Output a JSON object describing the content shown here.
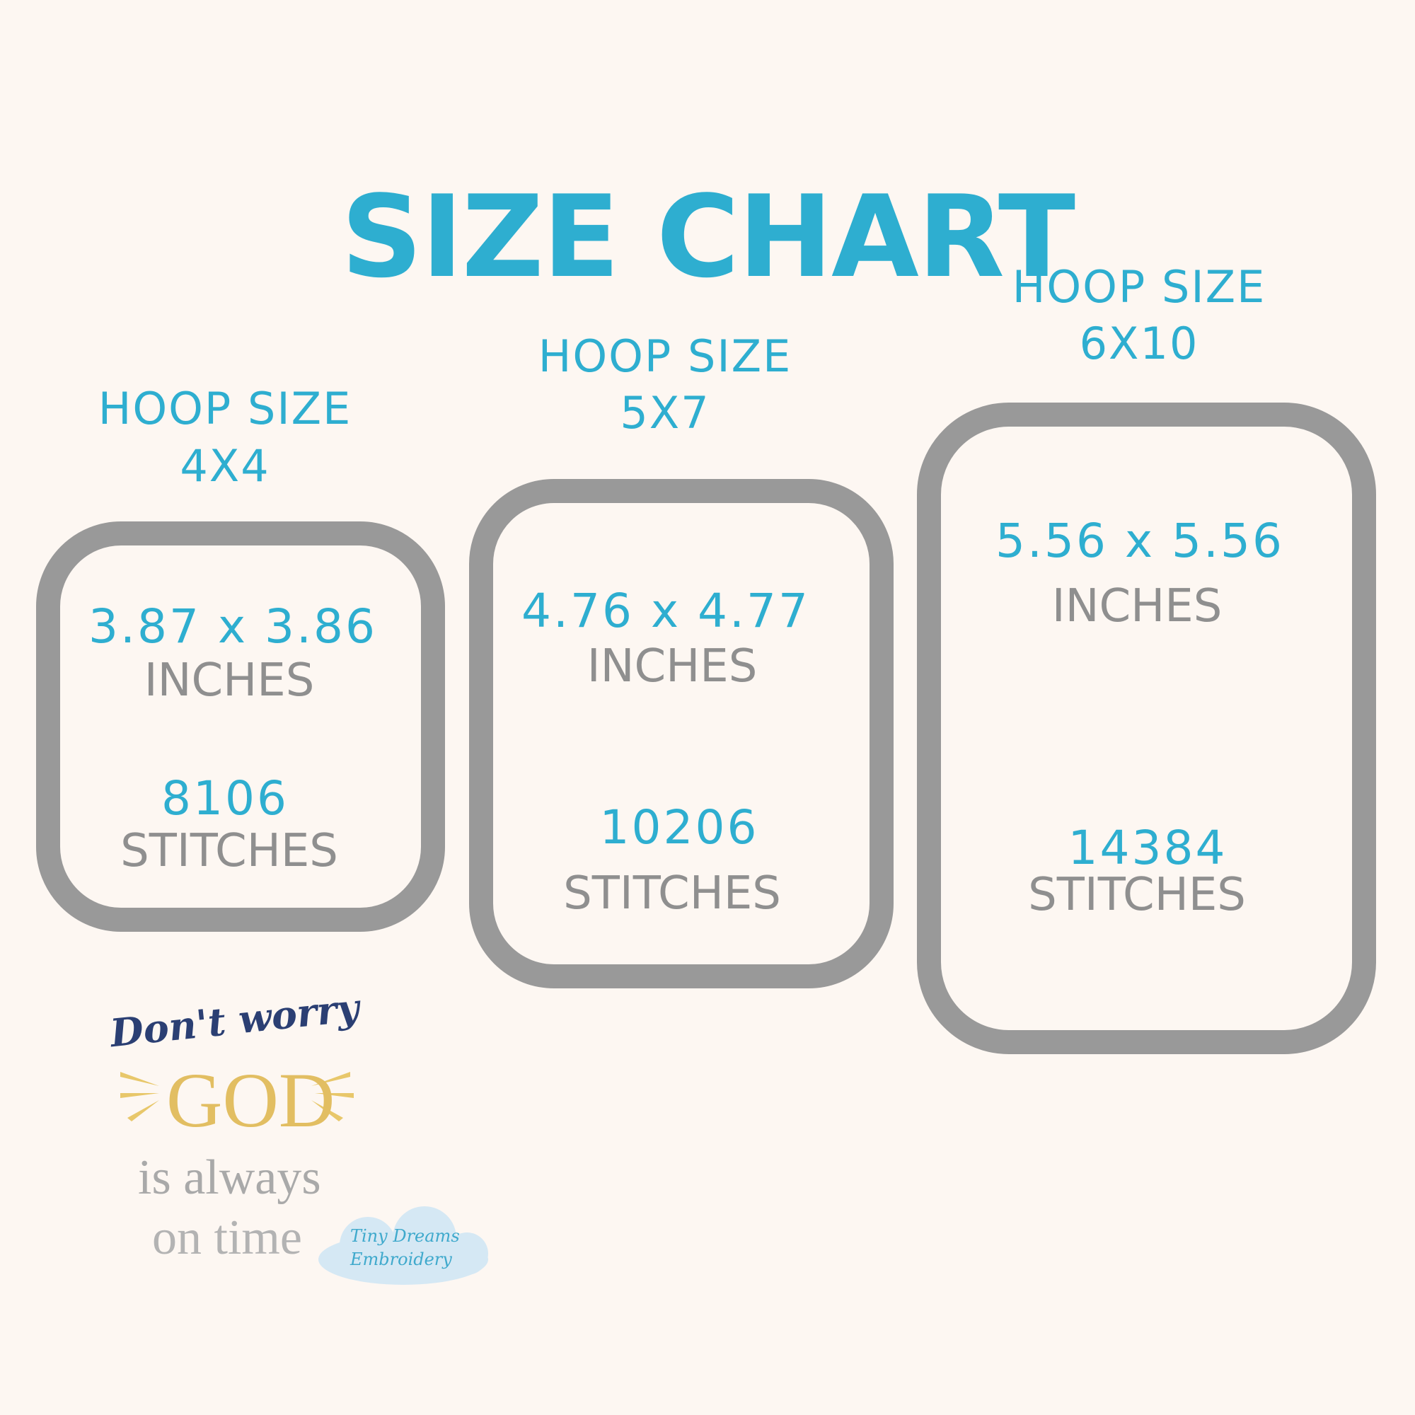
{
  "title": "SIZE CHART",
  "hoops": [
    {
      "label": "HOOP SIZE",
      "size": "4X4",
      "dimensions": "3.87 x 3.86",
      "dim_unit": "INCHES",
      "stitches": "8106",
      "stitch_unit": "STITCHES"
    },
    {
      "label": "HOOP SIZE",
      "size": "5X7",
      "dimensions": "4.76 x 4.77",
      "dim_unit": "INCHES",
      "stitches": "10206",
      "stitch_unit": "STITCHES"
    },
    {
      "label": "HOOP SIZE",
      "size": "6X10",
      "dimensions": "5.56 x 5.56",
      "dim_unit": "INCHES",
      "stitches": "14384",
      "stitch_unit": "STITCHES"
    }
  ],
  "design": {
    "line1": "Don't worry",
    "line2": "GOD",
    "line3": "is always",
    "line4": "on time"
  },
  "watermark": {
    "line1": "Tiny Dreams",
    "line2": "Embroidery"
  },
  "colors": {
    "accent": "#2eaed0",
    "hoop": "#999999",
    "background": "#fdf7f2"
  }
}
